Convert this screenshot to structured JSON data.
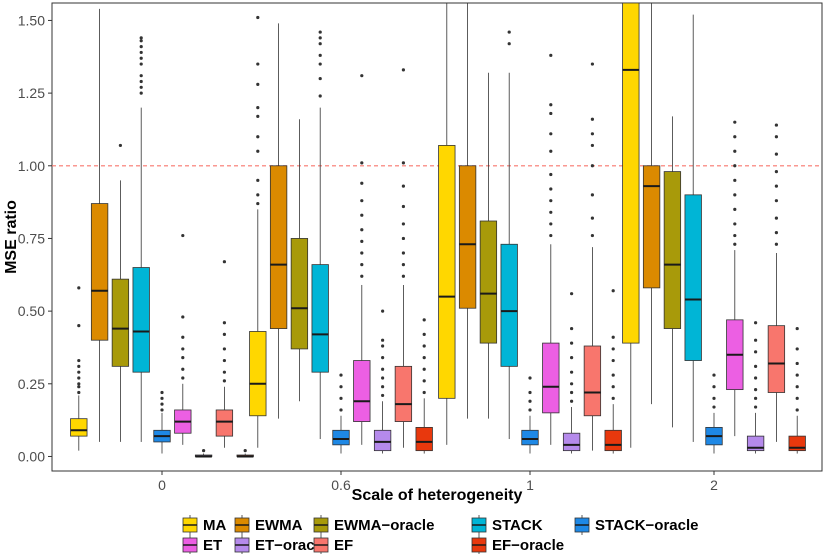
{
  "chart_data": {
    "type": "boxplot",
    "title": "",
    "xlabel": "Scale of heterogeneity",
    "ylabel": "MSE ratio",
    "categories": [
      "0",
      "0.6",
      "1",
      "2"
    ],
    "ylim": [
      -0.05,
      1.56
    ],
    "yticks": [
      0.0,
      0.25,
      0.5,
      0.75,
      1.0,
      1.25,
      1.5
    ],
    "ytick_labels": [
      "0.00",
      "0.25",
      "0.50",
      "0.75",
      "1.00",
      "1.25",
      "1.50"
    ],
    "reference_line": {
      "y": 1.0,
      "color": "#F8766D",
      "style": "dashed"
    },
    "legend_position": "bottom",
    "grid": false,
    "series": [
      {
        "name": "MA",
        "color": "#FFD700",
        "boxes": [
          {
            "min": 0.02,
            "q1": 0.07,
            "median": 0.09,
            "q3": 0.13,
            "max": 0.21,
            "outliers": [
              0.22,
              0.24,
              0.25,
              0.27,
              0.29,
              0.31,
              0.33,
              0.45,
              0.58
            ]
          },
          {
            "min": 0.03,
            "q1": 0.14,
            "median": 0.25,
            "q3": 0.43,
            "max": 0.85,
            "outliers": [
              0.87,
              0.9,
              0.95,
              1.05,
              1.1,
              1.17,
              1.2,
              1.28,
              1.35,
              1.51
            ]
          },
          {
            "min": 0.04,
            "q1": 0.2,
            "median": 0.55,
            "q3": 1.07,
            "max": 1.58,
            "outliers": []
          },
          {
            "min": 0.03,
            "q1": 0.39,
            "median": 1.33,
            "q3": 1.58,
            "max": 1.58,
            "outliers": []
          }
        ]
      },
      {
        "name": "EWMA",
        "color": "#DB8A00",
        "boxes": [
          {
            "min": 0.05,
            "q1": 0.4,
            "median": 0.57,
            "q3": 0.87,
            "max": 1.54,
            "outliers": []
          },
          {
            "min": 0.13,
            "q1": 0.44,
            "median": 0.66,
            "q3": 1.0,
            "max": 1.49,
            "outliers": []
          },
          {
            "min": 0.13,
            "q1": 0.51,
            "median": 0.73,
            "q3": 1.0,
            "max": 1.58,
            "outliers": []
          },
          {
            "min": 0.18,
            "q1": 0.58,
            "median": 0.93,
            "q3": 1.0,
            "max": 1.58,
            "outliers": []
          }
        ]
      },
      {
        "name": "EWMA−oracle",
        "color": "#A89A0A",
        "boxes": [
          {
            "min": 0.05,
            "q1": 0.31,
            "median": 0.44,
            "q3": 0.61,
            "max": 0.95,
            "outliers": [
              1.07
            ]
          },
          {
            "min": 0.19,
            "q1": 0.37,
            "median": 0.51,
            "q3": 0.75,
            "max": 1.16,
            "outliers": []
          },
          {
            "min": 0.13,
            "q1": 0.39,
            "median": 0.56,
            "q3": 0.81,
            "max": 1.32,
            "outliers": []
          },
          {
            "min": 0.1,
            "q1": 0.44,
            "median": 0.66,
            "q3": 0.98,
            "max": 1.17,
            "outliers": []
          }
        ]
      },
      {
        "name": "STACK",
        "color": "#00B5D6",
        "boxes": [
          {
            "min": 0.05,
            "q1": 0.29,
            "median": 0.43,
            "q3": 0.65,
            "max": 1.2,
            "outliers": [
              1.25,
              1.27,
              1.29,
              1.31,
              1.35,
              1.37,
              1.39,
              1.41,
              1.43,
              1.44
            ]
          },
          {
            "min": 0.06,
            "q1": 0.29,
            "median": 0.42,
            "q3": 0.66,
            "max": 1.2,
            "outliers": [
              1.24,
              1.3,
              1.35,
              1.38,
              1.42,
              1.44,
              1.46
            ]
          },
          {
            "min": 0.06,
            "q1": 0.31,
            "median": 0.5,
            "q3": 0.73,
            "max": 1.32,
            "outliers": [
              1.42,
              1.46
            ]
          },
          {
            "min": 0.05,
            "q1": 0.33,
            "median": 0.54,
            "q3": 0.9,
            "max": 1.52,
            "outliers": []
          }
        ]
      },
      {
        "name": "STACK−oracle",
        "color": "#1E88E5",
        "boxes": [
          {
            "min": 0.01,
            "q1": 0.05,
            "median": 0.07,
            "q3": 0.09,
            "max": 0.15,
            "outliers": [
              0.16,
              0.18,
              0.2,
              0.22
            ]
          },
          {
            "min": 0.01,
            "q1": 0.04,
            "median": 0.06,
            "q3": 0.09,
            "max": 0.14,
            "outliers": [
              0.16,
              0.2,
              0.24,
              0.28
            ]
          },
          {
            "min": 0.01,
            "q1": 0.04,
            "median": 0.06,
            "q3": 0.09,
            "max": 0.14,
            "outliers": [
              0.16,
              0.19,
              0.22,
              0.27
            ]
          },
          {
            "min": 0.01,
            "q1": 0.04,
            "median": 0.07,
            "q3": 0.1,
            "max": 0.15,
            "outliers": [
              0.17,
              0.2,
              0.24,
              0.28
            ]
          }
        ]
      },
      {
        "name": "ET",
        "color": "#EC5FE3",
        "boxes": [
          {
            "min": 0.04,
            "q1": 0.08,
            "median": 0.12,
            "q3": 0.16,
            "max": 0.25,
            "outliers": [
              0.27,
              0.3,
              0.34,
              0.37,
              0.41,
              0.48,
              0.76
            ]
          },
          {
            "min": 0.04,
            "q1": 0.12,
            "median": 0.19,
            "q3": 0.33,
            "max": 0.59,
            "outliers": [
              0.62,
              0.66,
              0.7,
              0.74,
              0.78,
              0.83,
              0.88,
              0.94,
              1.01,
              1.31
            ]
          },
          {
            "min": 0.04,
            "q1": 0.15,
            "median": 0.24,
            "q3": 0.39,
            "max": 0.73,
            "outliers": [
              0.76,
              0.8,
              0.84,
              0.88,
              0.92,
              0.97,
              1.05,
              1.11,
              1.18,
              1.21,
              1.38
            ]
          },
          {
            "min": 0.07,
            "q1": 0.23,
            "median": 0.35,
            "q3": 0.47,
            "max": 0.71,
            "outliers": [
              0.73,
              0.76,
              0.8,
              0.85,
              0.9,
              0.95,
              1.0,
              1.05,
              1.1,
              1.15
            ]
          }
        ]
      },
      {
        "name": "ET−oracle",
        "color": "#B58AEB",
        "boxes": [
          {
            "min": 0.0,
            "q1": 0.0,
            "median": 0.0,
            "q3": 0.005,
            "max": 0.01,
            "outliers": [
              0.02
            ]
          },
          {
            "min": 0.01,
            "q1": 0.02,
            "median": 0.05,
            "q3": 0.09,
            "max": 0.19,
            "outliers": [
              0.21,
              0.24,
              0.27,
              0.3,
              0.34,
              0.38,
              0.4,
              0.5
            ]
          },
          {
            "min": 0.01,
            "q1": 0.02,
            "median": 0.04,
            "q3": 0.08,
            "max": 0.17,
            "outliers": [
              0.19,
              0.22,
              0.25,
              0.29,
              0.34,
              0.39,
              0.44,
              0.56
            ]
          },
          {
            "min": 0.01,
            "q1": 0.02,
            "median": 0.03,
            "q3": 0.07,
            "max": 0.15,
            "outliers": [
              0.17,
              0.2,
              0.23,
              0.27,
              0.31,
              0.36,
              0.4,
              0.46
            ]
          }
        ]
      },
      {
        "name": "EF",
        "color": "#F8766D",
        "boxes": [
          {
            "min": 0.03,
            "q1": 0.07,
            "median": 0.12,
            "q3": 0.16,
            "max": 0.24,
            "outliers": [
              0.26,
              0.29,
              0.33,
              0.37,
              0.42,
              0.46,
              0.67
            ]
          },
          {
            "min": 0.03,
            "q1": 0.12,
            "median": 0.18,
            "q3": 0.31,
            "max": 0.59,
            "outliers": [
              0.62,
              0.66,
              0.7,
              0.75,
              0.8,
              0.86,
              0.93,
              1.01,
              1.33
            ]
          },
          {
            "min": 0.02,
            "q1": 0.14,
            "median": 0.22,
            "q3": 0.38,
            "max": 0.72,
            "outliers": [
              0.76,
              0.82,
              0.9,
              1.0,
              1.07,
              1.11,
              1.16,
              1.35
            ]
          },
          {
            "min": 0.05,
            "q1": 0.22,
            "median": 0.32,
            "q3": 0.45,
            "max": 0.7,
            "outliers": [
              0.73,
              0.77,
              0.82,
              0.88,
              0.93,
              0.98,
              1.04,
              1.1,
              1.14
            ]
          }
        ]
      },
      {
        "name": "EF−oracle",
        "color": "#E8380D",
        "boxes": [
          {
            "min": 0.0,
            "q1": 0.0,
            "median": 0.0,
            "q3": 0.005,
            "max": 0.01,
            "outliers": [
              0.02
            ]
          },
          {
            "min": 0.01,
            "q1": 0.02,
            "median": 0.05,
            "q3": 0.1,
            "max": 0.2,
            "outliers": [
              0.22,
              0.26,
              0.3,
              0.34,
              0.38,
              0.42,
              0.47
            ]
          },
          {
            "min": 0.01,
            "q1": 0.02,
            "median": 0.04,
            "q3": 0.09,
            "max": 0.18,
            "outliers": [
              0.2,
              0.24,
              0.28,
              0.33,
              0.37,
              0.41,
              0.57
            ]
          },
          {
            "min": 0.01,
            "q1": 0.02,
            "median": 0.03,
            "q3": 0.07,
            "max": 0.14,
            "outliers": [
              0.16,
              0.2,
              0.24,
              0.28,
              0.32,
              0.37,
              0.44
            ]
          }
        ]
      }
    ],
    "legend": [
      [
        "MA",
        "EWMA",
        "EWMA−oracle",
        "STACK",
        "STACK−oracle"
      ],
      [
        "ET",
        "ET−oracle",
        "EF",
        "EF−oracle"
      ]
    ]
  }
}
